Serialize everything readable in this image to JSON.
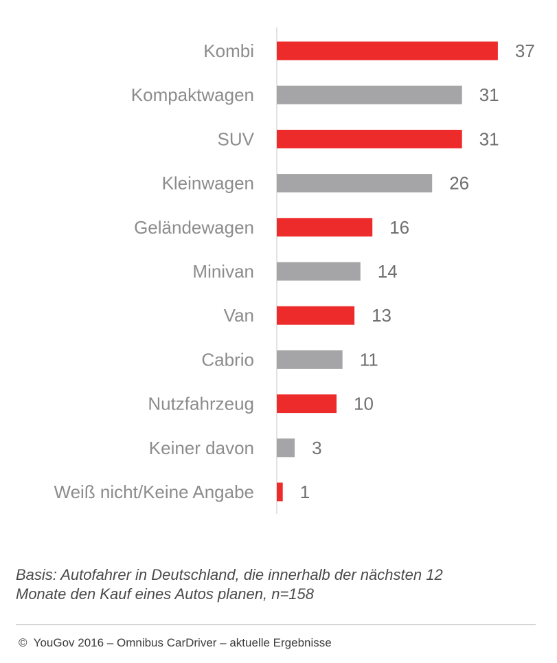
{
  "chart_data": {
    "type": "bar",
    "orientation": "horizontal",
    "categories": [
      "Kombi",
      "Kompaktwagen",
      "SUV",
      "Kleinwagen",
      "Geländewagen",
      "Minivan",
      "Van",
      "Cabrio",
      "Nutzfahrzeug",
      "Keiner davon",
      "Weiß nicht/Keine Angabe"
    ],
    "values": [
      37,
      31,
      31,
      26,
      16,
      14,
      13,
      11,
      10,
      3,
      1
    ],
    "colors": [
      "#ee2b2b",
      "#a5a5a8",
      "#ee2b2b",
      "#a5a5a8",
      "#ee2b2b",
      "#a5a5a8",
      "#ee2b2b",
      "#a5a5a8",
      "#ee2b2b",
      "#a5a5a8",
      "#ee2b2b"
    ],
    "xlim": [
      0,
      40
    ],
    "grid": false,
    "legend": "none"
  },
  "note": {
    "line1": "Basis: Autofahrer in Deutschland, die innerhalb der nächsten 12",
    "line2": "Monate den Kauf eines Autos planen, n=158"
  },
  "footer": {
    "copyright_symbol": "©",
    "text": "YouGov 2016 – Omnibus CarDriver – aktuelle Ergebnisse"
  }
}
